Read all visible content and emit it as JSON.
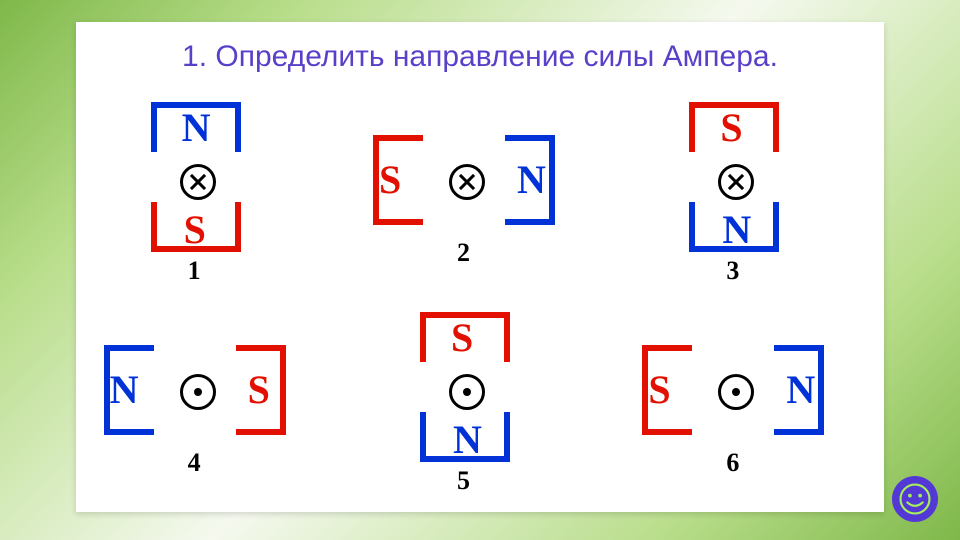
{
  "title": "1. Определить направление силы Ампера.",
  "colors": {
    "title": "#5a3fc9",
    "N_text": "#0032d8",
    "S_text": "#e11000",
    "N_stroke": "#0032d8",
    "S_stroke": "#e11000",
    "wire_border": "#000000",
    "wire_glyph": "#000000",
    "number": "#000000",
    "card_bg": "#ffffff",
    "bg_gradient": [
      "#7fb84a",
      "#b8dd8a",
      "#f5f9ef",
      "#b8dd8a",
      "#7fb84a"
    ],
    "smiley_bg": "#5438d6",
    "smiley_face": "#a3f05a"
  },
  "typography": {
    "title_fontsize": 30,
    "pole_fontsize": 40,
    "number_fontsize": 26,
    "title_font": "Arial",
    "pole_font": "Times New Roman"
  },
  "stroke_width": 6,
  "symbols": {
    "N": "N",
    "S": "S"
  },
  "problems": [
    {
      "id": 1,
      "number": "1",
      "orientation": "vertical",
      "top": "N",
      "bottom": "S",
      "current": "into"
    },
    {
      "id": 2,
      "number": "2",
      "orientation": "horizontal",
      "left": "S",
      "right": "N",
      "current": "into"
    },
    {
      "id": 3,
      "number": "3",
      "orientation": "vertical",
      "top": "S",
      "bottom": "N",
      "current": "into"
    },
    {
      "id": 4,
      "number": "4",
      "orientation": "horizontal",
      "left": "N",
      "right": "S",
      "current": "out"
    },
    {
      "id": 5,
      "number": "5",
      "orientation": "vertical",
      "top": "S",
      "bottom": "N",
      "current": "out"
    },
    {
      "id": 6,
      "number": "6",
      "orientation": "horizontal",
      "left": "S",
      "right": "N",
      "current": "out"
    }
  ]
}
